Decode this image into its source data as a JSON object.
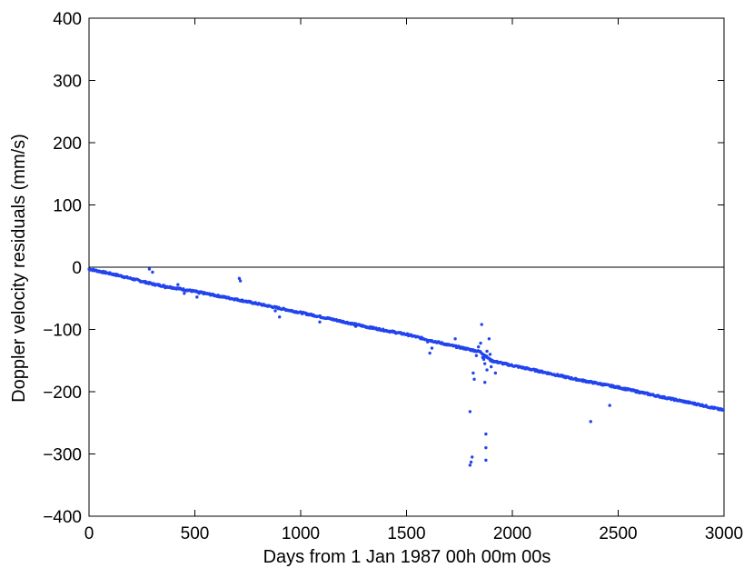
{
  "chart_data": {
    "type": "scatter",
    "title": "",
    "xlabel": "Days from 1 Jan 1987 00h 00m 00s",
    "ylabel": "Doppler velocity residuals (mm/s)",
    "xlim": [
      0,
      3000
    ],
    "ylim": [
      -400,
      400
    ],
    "xticks": [
      0,
      500,
      1000,
      1500,
      2000,
      2500,
      3000
    ],
    "yticks": [
      -400,
      -300,
      -200,
      -100,
      0,
      100,
      200,
      300,
      400
    ],
    "xtick_labels": [
      "0",
      "500",
      "1000",
      "1500",
      "2000",
      "2500",
      "3000"
    ],
    "ytick_labels": [
      "−400",
      "−300",
      "−200",
      "−100",
      "0",
      "100",
      "200",
      "300",
      "400"
    ],
    "grid": false,
    "reference_line": {
      "y": 0,
      "color": "#000000"
    },
    "marker_color": "#2244ee",
    "series": [
      {
        "trend": [
          [
            0,
            -3
          ],
          [
            150,
            -14
          ],
          [
            300,
            -27
          ],
          [
            500,
            -39
          ],
          [
            700,
            -52
          ],
          [
            900,
            -66
          ],
          [
            1100,
            -80
          ],
          [
            1300,
            -95
          ],
          [
            1500,
            -108
          ],
          [
            1700,
            -125
          ],
          [
            1850,
            -136
          ],
          [
            1900,
            -150
          ],
          [
            1960,
            -155
          ],
          [
            2100,
            -165
          ],
          [
            2300,
            -180
          ],
          [
            2500,
            -193
          ],
          [
            2700,
            -208
          ],
          [
            2900,
            -222
          ],
          [
            3000,
            -230
          ]
        ],
        "outliers": [
          [
            285,
            -3
          ],
          [
            300,
            -8
          ],
          [
            330,
            -28
          ],
          [
            360,
            -33
          ],
          [
            420,
            -28
          ],
          [
            450,
            -42
          ],
          [
            510,
            -48
          ],
          [
            520,
            -42
          ],
          [
            710,
            -18
          ],
          [
            715,
            -22
          ],
          [
            880,
            -70
          ],
          [
            900,
            -80
          ],
          [
            1090,
            -88
          ],
          [
            1260,
            -95
          ],
          [
            1600,
            -120
          ],
          [
            1610,
            -138
          ],
          [
            1620,
            -130
          ],
          [
            1730,
            -115
          ],
          [
            1800,
            -232
          ],
          [
            1800,
            -318
          ],
          [
            1805,
            -313
          ],
          [
            1810,
            -305
          ],
          [
            1815,
            -170
          ],
          [
            1820,
            -180
          ],
          [
            1830,
            -142
          ],
          [
            1840,
            -128
          ],
          [
            1850,
            -122
          ],
          [
            1855,
            -92
          ],
          [
            1860,
            -145
          ],
          [
            1865,
            -148
          ],
          [
            1870,
            -155
          ],
          [
            1870,
            -185
          ],
          [
            1875,
            -268
          ],
          [
            1875,
            -290
          ],
          [
            1875,
            -310
          ],
          [
            1880,
            -135
          ],
          [
            1880,
            -165
          ],
          [
            1890,
            -115
          ],
          [
            1895,
            -140
          ],
          [
            1900,
            -160
          ],
          [
            1920,
            -170
          ],
          [
            2370,
            -248
          ],
          [
            2460,
            -222
          ]
        ]
      }
    ]
  }
}
